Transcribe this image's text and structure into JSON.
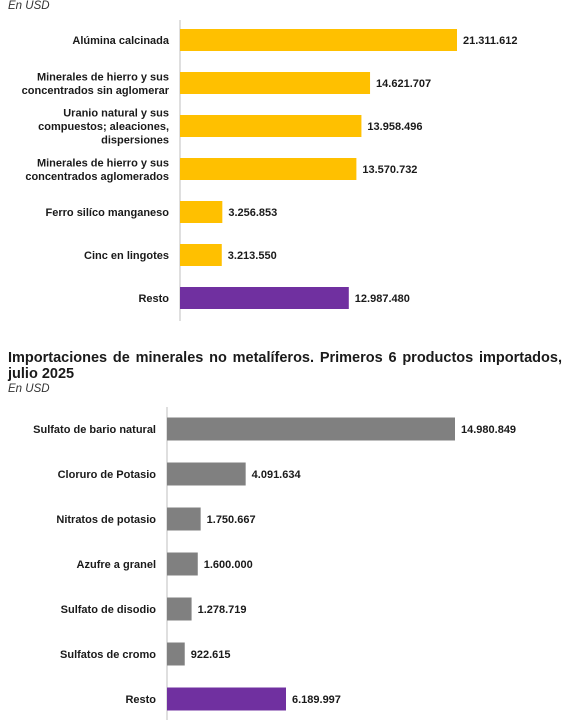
{
  "chart_data": [
    {
      "type": "bar",
      "orientation": "horizontal",
      "subtitle": "En USD",
      "categories": [
        "Alúmina calcinada",
        "Minerales de hierro y sus concentrados sin aglomerar",
        "Uranio natural y sus compuestos; aleaciones, dispersiones",
        "Minerales de hierro y sus concentrados aglomerados",
        "Ferro silíco manganeso",
        "Cinc en lingotes",
        "Resto"
      ],
      "values": [
        21311612,
        14621707,
        13958496,
        13570732,
        3256853,
        3213550,
        12987480
      ],
      "value_labels": [
        "21.311.612",
        "14.621.707",
        "13.958.496",
        "13.570.732",
        "3.256.853",
        "3.213.550",
        "12.987.480"
      ],
      "colors": [
        "#FFC000",
        "#FFC000",
        "#FFC000",
        "#FFC000",
        "#FFC000",
        "#FFC000",
        "#7030A0"
      ]
    },
    {
      "type": "bar",
      "orientation": "horizontal",
      "title": "Importaciones de minerales no metalíferos. Primeros 6 productos importados, julio 2025",
      "subtitle": "En USD",
      "categories": [
        "Sulfato de bario natural",
        "Cloruro de Potasio",
        "Nitratos de potasio",
        "Azufre a granel",
        "Sulfato de disodio",
        "Sulfatos de cromo",
        "Resto"
      ],
      "values": [
        14980849,
        4091634,
        1750667,
        1600000,
        1278719,
        922615,
        6189997
      ],
      "value_labels": [
        "14.980.849",
        "4.091.634",
        "1.750.667",
        "1.600.000",
        "1.278.719",
        "922.615",
        "6.189.997"
      ],
      "colors": [
        "#808080",
        "#808080",
        "#808080",
        "#808080",
        "#808080",
        "#808080",
        "#7030A0"
      ]
    }
  ]
}
